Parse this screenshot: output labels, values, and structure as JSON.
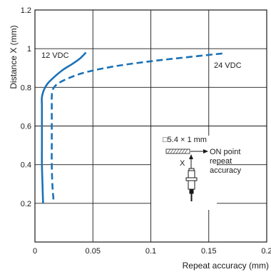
{
  "chart_data": {
    "type": "line",
    "xlabel": "Repeat accuracy (mm)",
    "ylabel": "Distance X (mm)",
    "xlim": [
      0,
      0.2
    ],
    "ylim": [
      0,
      1.2
    ],
    "x_ticks": [
      "0",
      "0.05",
      "0.1",
      "0.15",
      "0.2"
    ],
    "y_ticks": [
      "0.2",
      "0.4",
      "0.6",
      "0.8",
      "1",
      "1.2"
    ],
    "grid": true,
    "series": [
      {
        "name": "12 VDC",
        "style": "solid",
        "color": "#1a72b8",
        "points": [
          [
            0.007,
            0.2
          ],
          [
            0.0065,
            0.3
          ],
          [
            0.006,
            0.4
          ],
          [
            0.006,
            0.5
          ],
          [
            0.006,
            0.6
          ],
          [
            0.006,
            0.7
          ],
          [
            0.006,
            0.75
          ],
          [
            0.008,
            0.79
          ],
          [
            0.011,
            0.82
          ],
          [
            0.016,
            0.85
          ],
          [
            0.024,
            0.89
          ],
          [
            0.032,
            0.92
          ],
          [
            0.039,
            0.95
          ],
          [
            0.044,
            0.98
          ]
        ]
      },
      {
        "name": "24 VDC",
        "style": "dashed",
        "color": "#1a72b8",
        "points": [
          [
            0.016,
            0.22
          ],
          [
            0.015,
            0.3
          ],
          [
            0.0145,
            0.4
          ],
          [
            0.0145,
            0.5
          ],
          [
            0.0145,
            0.6
          ],
          [
            0.0145,
            0.7
          ],
          [
            0.0145,
            0.75
          ],
          [
            0.0155,
            0.79
          ],
          [
            0.02,
            0.82
          ],
          [
            0.03,
            0.85
          ],
          [
            0.045,
            0.88
          ],
          [
            0.07,
            0.91
          ],
          [
            0.1,
            0.935
          ],
          [
            0.13,
            0.955
          ],
          [
            0.162,
            0.975
          ]
        ]
      }
    ],
    "annotations": {
      "target_size": "□5.4 × 1 mm",
      "on_point_line1": "ON point",
      "on_point_line2": "repeat",
      "on_point_line3": "accuracy",
      "distance_marker": "X"
    }
  }
}
